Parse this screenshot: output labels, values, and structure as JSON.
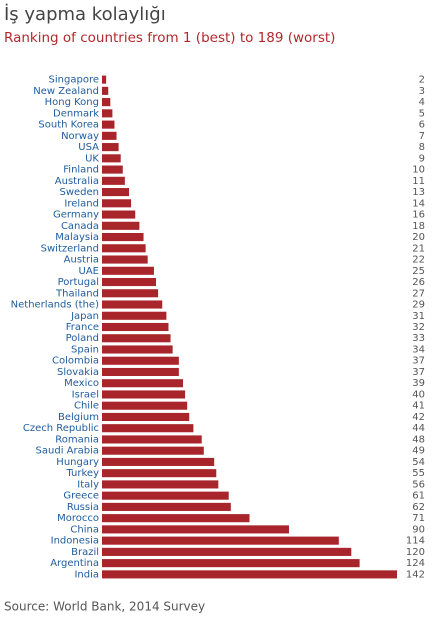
{
  "chart_data": {
    "type": "bar",
    "orientation": "horizontal",
    "title": "İş yapma kolaylığı",
    "subtitle": "Ranking of countries from 1 (best) to 189 (worst)",
    "source": "Source: World Bank, 2014 Survey",
    "color": "#a8262b",
    "categories": [
      "Singapore",
      "New Zealand",
      "Hong Kong",
      "Denmark",
      "South Korea",
      "Norway",
      "USA",
      "UK",
      "Finland",
      "Australia",
      "Sweden",
      "Ireland",
      "Germany",
      "Canada",
      "Malaysia",
      "Switzerland",
      "Austria",
      "UAE",
      "Portugal",
      "Thailand",
      "Netherlands (the)",
      "Japan",
      "France",
      "Poland",
      "Spain",
      "Colombia",
      "Slovakia",
      "Mexico",
      "Israel",
      "Chile",
      "Belgium",
      "Czech Republic",
      "Romania",
      "Saudi Arabia",
      "Hungary",
      "Turkey",
      "Italy",
      "Greece",
      "Russia",
      "Morocco",
      "China",
      "Indonesia",
      "Brazil",
      "Argentina",
      "India"
    ],
    "values": [
      2,
      3,
      4,
      5,
      6,
      7,
      8,
      9,
      10,
      11,
      13,
      14,
      16,
      18,
      20,
      21,
      22,
      25,
      26,
      27,
      29,
      31,
      32,
      33,
      34,
      37,
      37,
      39,
      40,
      41,
      42,
      44,
      48,
      49,
      54,
      55,
      56,
      61,
      62,
      71,
      90,
      114,
      120,
      124,
      142
    ]
  }
}
